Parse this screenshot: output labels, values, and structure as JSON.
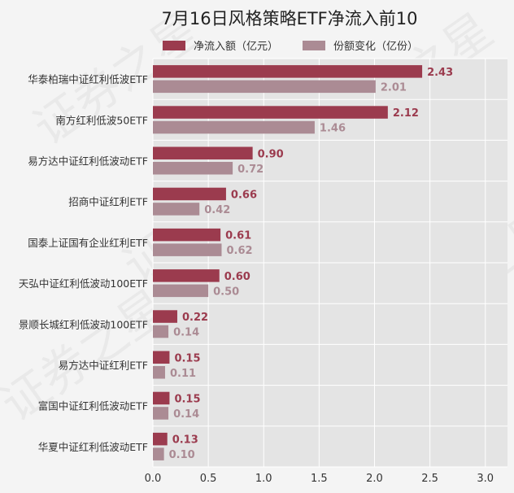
{
  "chart_data": {
    "type": "bar",
    "orientation": "horizontal",
    "title": "7月16日风格策略ETF净流入前10",
    "xlabel": "",
    "ylabel": "",
    "xlim": [
      0,
      3.2
    ],
    "xticks": [
      0.0,
      0.5,
      1.0,
      1.5,
      2.0,
      2.5,
      3.0
    ],
    "xtick_labels": [
      "0.0",
      "0.5",
      "1.0",
      "1.5",
      "2.0",
      "2.5",
      "3.0"
    ],
    "grid": true,
    "legend_position": "top",
    "categories": [
      "华泰柏瑞中证红利低波ETF",
      "南方红利低波50ETF",
      "易方达中证红利低波动ETF",
      "招商中证红利ETF",
      "国泰上证国有企业红利ETF",
      "天弘中证红利低波动100ETF",
      "景顺长城红利低波动100ETF",
      "易方达中证红利ETF",
      "富国中证红利低波动ETF",
      "华夏中证红利低波动ETF"
    ],
    "series": [
      {
        "name": "净流入额（亿元）",
        "color": "#9b3b4e",
        "values": [
          2.43,
          2.12,
          0.9,
          0.66,
          0.61,
          0.6,
          0.22,
          0.15,
          0.15,
          0.13
        ],
        "labels": [
          "2.43",
          "2.12",
          "0.90",
          "0.66",
          "0.61",
          "0.60",
          "0.22",
          "0.15",
          "0.15",
          "0.13"
        ]
      },
      {
        "name": "份额变化（亿份）",
        "color": "#ab8b94",
        "values": [
          2.01,
          1.46,
          0.72,
          0.42,
          0.62,
          0.5,
          0.14,
          0.11,
          0.14,
          0.1
        ],
        "labels": [
          "2.01",
          "1.46",
          "0.72",
          "0.42",
          "0.62",
          "0.50",
          "0.14",
          "0.11",
          "0.14",
          "0.10"
        ]
      }
    ]
  },
  "watermark": {
    "text": "证券之星"
  },
  "colors": {
    "background": "#f4f4f4",
    "plot_background": "#e4e4e4",
    "grid": "#ffffff",
    "text": "#333333"
  }
}
